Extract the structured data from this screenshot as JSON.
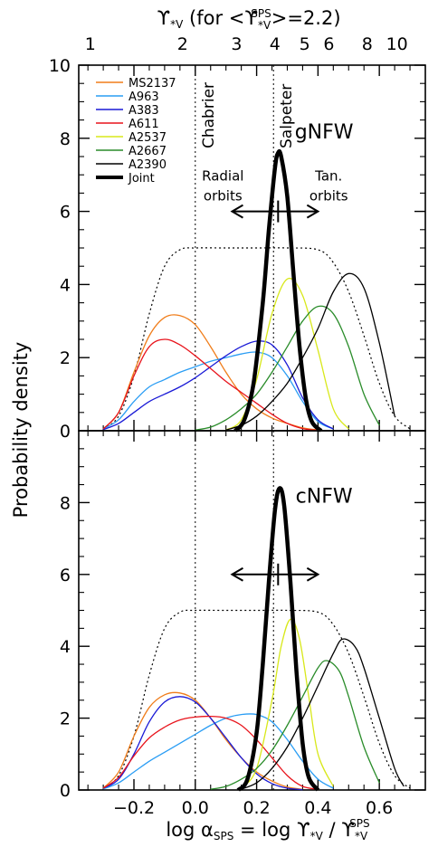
{
  "chart_data": {
    "type": "line",
    "ylabel": "Probability density",
    "xlabel": {
      "prefix": "log α",
      "prefix_sub": "SPS",
      "middle": " = log ϒ",
      "middle_sub": "*V",
      "sep": " / ϒ",
      "suffix_sub": "*V",
      "suffix_sup": "SPS"
    },
    "top_axis": {
      "title_prefix": "ϒ",
      "title_prefix_sub": "*V",
      "title_mid": " (for <ϒ",
      "title_mid_sub": "*V",
      "title_mid_sup": "SPS",
      "title_end": ">=2.2)",
      "ticks": [
        {
          "value": 1,
          "label": "1"
        },
        {
          "value": 2,
          "label": "2"
        },
        {
          "value": 3,
          "label": "3"
        },
        {
          "value": 4,
          "label": "4"
        },
        {
          "value": 5,
          "label": "5"
        },
        {
          "value": 6,
          "label": "6"
        },
        {
          "value": 8,
          "label": "8"
        },
        {
          "value": 10,
          "label": "10"
        }
      ]
    },
    "xlim": [
      -0.38,
      0.75
    ],
    "x_ticks": [
      -0.2,
      0.0,
      0.2,
      0.4,
      0.6
    ],
    "x_tick_labels": [
      "−0.2",
      "0.0",
      "0.2",
      "0.4",
      "0.6"
    ],
    "vertical_lines": [
      {
        "x": 0.0,
        "label": "Chabrier"
      },
      {
        "x": 0.255,
        "label": "Salpeter"
      }
    ],
    "colors": {
      "MS2137": "#f07d1a",
      "A963": "#2a9df4",
      "A383": "#1a1ad6",
      "A611": "#e8141c",
      "A2537": "#d8e81a",
      "A2667": "#2a8c2a",
      "A2390": "#000000",
      "Joint": "#000000",
      "prior": "#000000"
    },
    "legend": [
      "MS2137",
      "A963",
      "A383",
      "A611",
      "A2537",
      "A2667",
      "A2390",
      "Joint"
    ],
    "panels": [
      {
        "label": "gNFW",
        "ylim": [
          0,
          10
        ],
        "y_ticks": [
          0,
          2,
          4,
          6,
          8,
          10
        ],
        "annotations": {
          "radial": [
            "Radial",
            "orbits"
          ],
          "tangential": [
            "Tan.",
            "orbits"
          ],
          "arrow": {
            "from": 0.12,
            "to": 0.4,
            "center": 0.27,
            "y": 6.0
          }
        },
        "series": [
          {
            "name": "prior",
            "style": "dotted",
            "x": [
              -0.3,
              -0.25,
              -0.2,
              -0.15,
              -0.1,
              -0.05,
              0.0,
              0.1,
              0.2,
              0.3,
              0.4,
              0.45,
              0.5,
              0.55,
              0.6,
              0.65,
              0.7
            ],
            "y": [
              0.05,
              0.4,
              1.5,
              3.2,
              4.5,
              4.95,
              5.0,
              5.0,
              5.0,
              5.0,
              4.95,
              4.6,
              3.8,
              2.6,
              1.3,
              0.4,
              0.05
            ]
          },
          {
            "name": "MS2137",
            "x": [
              -0.3,
              -0.25,
              -0.2,
              -0.15,
              -0.1,
              -0.05,
              0.0,
              0.05,
              0.1,
              0.15,
              0.2,
              0.25,
              0.3,
              0.35,
              0.4
            ],
            "y": [
              0.05,
              0.5,
              1.6,
              2.6,
              3.1,
              3.15,
              2.9,
              2.3,
              1.6,
              1.0,
              0.6,
              0.35,
              0.2,
              0.08,
              0.02
            ]
          },
          {
            "name": "A963",
            "x": [
              -0.3,
              -0.25,
              -0.2,
              -0.15,
              -0.1,
              -0.05,
              0.0,
              0.05,
              0.1,
              0.15,
              0.2,
              0.25,
              0.3,
              0.35,
              0.4,
              0.45
            ],
            "y": [
              0.05,
              0.3,
              0.8,
              1.2,
              1.4,
              1.6,
              1.75,
              1.9,
              2.0,
              2.1,
              2.15,
              2.0,
              1.5,
              0.8,
              0.25,
              0.05
            ]
          },
          {
            "name": "A383",
            "x": [
              -0.3,
              -0.25,
              -0.2,
              -0.15,
              -0.1,
              -0.05,
              0.0,
              0.05,
              0.1,
              0.15,
              0.2,
              0.25,
              0.3,
              0.35,
              0.4,
              0.45
            ],
            "y": [
              0.03,
              0.2,
              0.5,
              0.8,
              1.0,
              1.2,
              1.45,
              1.75,
              2.05,
              2.3,
              2.45,
              2.35,
              1.8,
              0.9,
              0.3,
              0.05
            ]
          },
          {
            "name": "A611",
            "x": [
              -0.3,
              -0.25,
              -0.2,
              -0.15,
              -0.1,
              -0.05,
              0.0,
              0.05,
              0.1,
              0.15,
              0.2,
              0.25,
              0.3,
              0.35,
              0.4
            ],
            "y": [
              0.05,
              0.5,
              1.5,
              2.3,
              2.5,
              2.35,
              2.05,
              1.7,
              1.35,
              1.05,
              0.75,
              0.45,
              0.2,
              0.06,
              0.01
            ]
          },
          {
            "name": "A2537",
            "x": [
              0.1,
              0.15,
              0.2,
              0.25,
              0.3,
              0.35,
              0.4,
              0.45,
              0.5
            ],
            "y": [
              0.02,
              0.3,
              1.4,
              3.2,
              4.15,
              3.7,
              2.2,
              0.6,
              0.05
            ]
          },
          {
            "name": "A2667",
            "x": [
              0.0,
              0.05,
              0.1,
              0.15,
              0.2,
              0.25,
              0.3,
              0.35,
              0.4,
              0.45,
              0.5,
              0.55,
              0.6
            ],
            "y": [
              0.02,
              0.1,
              0.3,
              0.6,
              1.0,
              1.6,
              2.3,
              3.0,
              3.4,
              3.2,
              2.3,
              1.0,
              0.15
            ]
          },
          {
            "name": "A2390",
            "x": [
              0.1,
              0.15,
              0.2,
              0.25,
              0.3,
              0.35,
              0.4,
              0.45,
              0.5,
              0.55,
              0.6,
              0.65
            ],
            "y": [
              0.02,
              0.15,
              0.4,
              0.8,
              1.3,
              2.0,
              2.8,
              3.8,
              4.3,
              3.9,
              2.4,
              0.4
            ]
          },
          {
            "name": "Joint",
            "style": "thick",
            "x": [
              0.13,
              0.16,
              0.19,
              0.22,
              0.24,
              0.26,
              0.27,
              0.28,
              0.3,
              0.32,
              0.34,
              0.36,
              0.38,
              0.41
            ],
            "y": [
              0.0,
              0.3,
              1.3,
              3.5,
              5.5,
              7.2,
              7.6,
              7.5,
              6.4,
              4.3,
              2.3,
              0.9,
              0.25,
              0.0
            ]
          }
        ]
      },
      {
        "label": "cNFW",
        "ylim": [
          0,
          10
        ],
        "y_ticks": [
          0,
          2,
          4,
          6,
          8
        ],
        "annotations": {
          "radial": [],
          "tangential": [],
          "arrow": {
            "from": 0.12,
            "to": 0.4,
            "center": 0.27,
            "y": 6.0
          }
        },
        "series": [
          {
            "name": "prior",
            "style": "dotted",
            "x": [
              -0.3,
              -0.25,
              -0.2,
              -0.15,
              -0.1,
              -0.05,
              0.0,
              0.1,
              0.2,
              0.3,
              0.4,
              0.45,
              0.5,
              0.55,
              0.6,
              0.65,
              0.7
            ],
            "y": [
              0.05,
              0.4,
              1.5,
              3.2,
              4.5,
              4.95,
              5.0,
              5.0,
              5.0,
              5.0,
              4.95,
              4.6,
              3.8,
              2.6,
              1.3,
              0.4,
              0.05
            ]
          },
          {
            "name": "MS2137",
            "x": [
              -0.3,
              -0.25,
              -0.2,
              -0.15,
              -0.1,
              -0.05,
              0.0,
              0.05,
              0.1,
              0.15,
              0.2,
              0.25,
              0.3,
              0.35
            ],
            "y": [
              0.05,
              0.5,
              1.5,
              2.3,
              2.65,
              2.7,
              2.5,
              2.0,
              1.4,
              0.9,
              0.5,
              0.25,
              0.08,
              0.02
            ]
          },
          {
            "name": "A963",
            "x": [
              -0.3,
              -0.25,
              -0.2,
              -0.15,
              -0.1,
              -0.05,
              0.0,
              0.05,
              0.1,
              0.15,
              0.2,
              0.25,
              0.3,
              0.35,
              0.4,
              0.45
            ],
            "y": [
              0.03,
              0.2,
              0.5,
              0.8,
              1.05,
              1.3,
              1.55,
              1.8,
              2.0,
              2.1,
              2.1,
              1.9,
              1.4,
              0.8,
              0.3,
              0.05
            ]
          },
          {
            "name": "A383",
            "x": [
              -0.3,
              -0.25,
              -0.2,
              -0.15,
              -0.1,
              -0.05,
              0.0,
              0.05,
              0.1,
              0.15,
              0.2,
              0.25,
              0.3,
              0.35
            ],
            "y": [
              0.05,
              0.3,
              1.0,
              1.9,
              2.45,
              2.6,
              2.45,
              2.0,
              1.45,
              0.9,
              0.45,
              0.18,
              0.05,
              0.01
            ]
          },
          {
            "name": "A611",
            "x": [
              -0.3,
              -0.25,
              -0.2,
              -0.15,
              -0.1,
              -0.05,
              0.0,
              0.05,
              0.1,
              0.15,
              0.2,
              0.25,
              0.3,
              0.35,
              0.4
            ],
            "y": [
              0.05,
              0.35,
              0.95,
              1.45,
              1.75,
              1.95,
              2.03,
              2.05,
              2.0,
              1.8,
              1.4,
              0.9,
              0.4,
              0.1,
              0.02
            ]
          },
          {
            "name": "A2537",
            "x": [
              0.15,
              0.2,
              0.25,
              0.28,
              0.31,
              0.34,
              0.37,
              0.4,
              0.45
            ],
            "y": [
              0.05,
              0.6,
              2.5,
              4.0,
              4.75,
              4.2,
              2.6,
              1.0,
              0.1
            ]
          },
          {
            "name": "A2667",
            "x": [
              0.05,
              0.1,
              0.15,
              0.2,
              0.25,
              0.3,
              0.35,
              0.4,
              0.43,
              0.47,
              0.5,
              0.55,
              0.6
            ],
            "y": [
              0.02,
              0.1,
              0.3,
              0.6,
              1.1,
              1.8,
              2.6,
              3.4,
              3.6,
              3.3,
              2.6,
              1.2,
              0.2
            ]
          },
          {
            "name": "A2390",
            "x": [
              0.15,
              0.2,
              0.25,
              0.3,
              0.35,
              0.4,
              0.45,
              0.48,
              0.52,
              0.55,
              0.6,
              0.65,
              0.68
            ],
            "y": [
              0.02,
              0.2,
              0.6,
              1.2,
              2.0,
              2.9,
              3.8,
              4.2,
              4.0,
              3.4,
              2.0,
              0.6,
              0.1
            ]
          },
          {
            "name": "Joint",
            "style": "thick",
            "x": [
              0.14,
              0.17,
              0.2,
              0.22,
              0.24,
              0.26,
              0.275,
              0.29,
              0.31,
              0.33,
              0.35,
              0.37,
              0.4
            ],
            "y": [
              0.0,
              0.3,
              1.6,
              3.5,
              5.8,
              7.8,
              8.4,
              7.9,
              5.8,
              3.3,
              1.3,
              0.35,
              0.0
            ]
          }
        ]
      }
    ]
  }
}
